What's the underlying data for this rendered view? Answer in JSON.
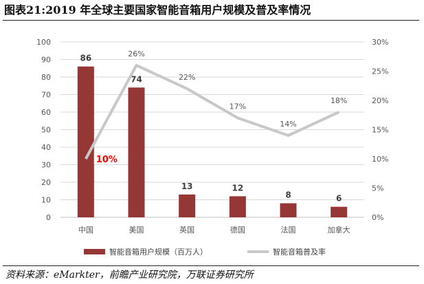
{
  "title": "图表21:2019 年全球主要国家智能音箱用户规模及普及率情况",
  "source": "资料来源：eMarkter，前瞻产业研究院，万联证券研究所",
  "chart_data": {
    "type": "bar",
    "categories": [
      "中国",
      "美国",
      "英国",
      "德国",
      "法国",
      "加拿大"
    ],
    "series": [
      {
        "name": "智能音箱用户规模（百万人）",
        "type": "bar",
        "axis": "left",
        "color": "#953735",
        "values": [
          86,
          74,
          13,
          12,
          8,
          6
        ],
        "labels": [
          "86",
          "74",
          "13",
          "12",
          "8",
          "6"
        ]
      },
      {
        "name": "智能音箱普及率",
        "type": "line",
        "axis": "right",
        "color": "#c8c8c8",
        "values": [
          10,
          26,
          22,
          17,
          14,
          18
        ],
        "labels": [
          "10%",
          "26%",
          "22%",
          "17%",
          "14%",
          "18%"
        ],
        "highlight_color": "#ff0000"
      }
    ],
    "y_left": {
      "min": 0,
      "max": 100,
      "step": 10,
      "ticks": [
        "0",
        "10",
        "20",
        "30",
        "40",
        "50",
        "60",
        "70",
        "80",
        "90",
        "100"
      ]
    },
    "y_right": {
      "min": 0,
      "max": 30,
      "step": 5,
      "ticks": [
        "0%",
        "5%",
        "10%",
        "15%",
        "20%",
        "25%",
        "30%"
      ]
    },
    "grid": true,
    "legend_position": "bottom"
  }
}
